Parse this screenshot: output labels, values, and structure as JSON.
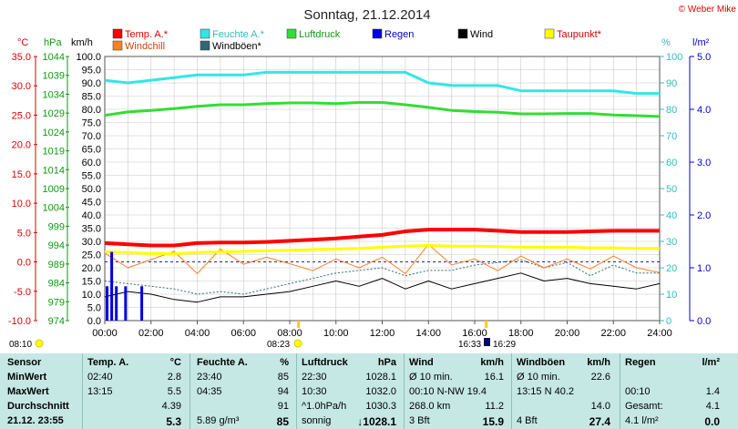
{
  "title": "Sonntag, 21.12.2014",
  "copyright": "© Weber Mike",
  "colors": {
    "temp": "#ff0000",
    "humidity": "#33e6e6",
    "pressure": "#33dd33",
    "rain": "#0000dd",
    "wind": "#000000",
    "dewpoint": "#ffff00",
    "windchill": "#ff8020",
    "gust": "#336677",
    "grid": "#c8c8c8"
  },
  "units": {
    "temp": "°C",
    "pressure": "hPa",
    "wind": "km/h",
    "humidity": "%",
    "rain": "l/m²"
  },
  "legend": {
    "row1": [
      "Temp. A.*",
      "Feuchte A.*",
      "Luftdruck",
      "Regen",
      "Wind",
      "Taupunkt*"
    ],
    "row2": [
      "Windchill",
      "Windböen*"
    ]
  },
  "axes": {
    "temp_ticks": [
      "35.0",
      "30.0",
      "25.0",
      "20.0",
      "15.0",
      "10.0",
      "5.0",
      "0.0",
      "-5.0",
      "-10.0"
    ],
    "pressure_ticks": [
      "1044",
      "1039",
      "1034",
      "1029",
      "1024",
      "1019",
      "1014",
      "1009",
      "1004",
      "999",
      "994",
      "989",
      "984",
      "979",
      "974"
    ],
    "wind_ticks": [
      "100.0",
      "95.0",
      "90.0",
      "85.0",
      "80.0",
      "75.0",
      "70.0",
      "65.0",
      "60.0",
      "55.0",
      "50.0",
      "45.0",
      "40.0",
      "35.0",
      "30.0",
      "25.0",
      "20.0",
      "15.0",
      "10.0",
      "5.0",
      "0.0"
    ],
    "humidity_ticks": [
      "100",
      "90",
      "80",
      "70",
      "60",
      "50",
      "40",
      "30",
      "20",
      "10",
      "0"
    ],
    "rain_ticks": [
      "5.0",
      "4.0",
      "3.0",
      "2.0",
      "1.0",
      "0.0"
    ],
    "x_ticks": [
      "00:00",
      "02:00",
      "04:00",
      "06:00",
      "08:00",
      "10:00",
      "12:00",
      "14:00",
      "16:00",
      "18:00",
      "20:00",
      "22:00",
      "24:00"
    ]
  },
  "sun": {
    "sunrise_left": "08:10",
    "sunrise": "08:23",
    "sunset_start": "16:33",
    "sunset": "16:29"
  },
  "chart_data": {
    "type": "line",
    "xlabel": "",
    "x": [
      "00:00",
      "01:00",
      "02:00",
      "03:00",
      "04:00",
      "05:00",
      "06:00",
      "07:00",
      "08:00",
      "09:00",
      "10:00",
      "11:00",
      "12:00",
      "13:00",
      "14:00",
      "15:00",
      "16:00",
      "17:00",
      "18:00",
      "19:00",
      "20:00",
      "21:00",
      "22:00",
      "23:00",
      "24:00"
    ],
    "xlim": [
      0,
      24
    ],
    "series": [
      {
        "name": "Temp. A.*",
        "axis": "temp",
        "values": [
          3.2,
          3.0,
          2.8,
          2.8,
          3.2,
          3.3,
          3.3,
          3.4,
          3.6,
          3.8,
          4.0,
          4.3,
          4.6,
          5.2,
          5.5,
          5.5,
          5.5,
          5.3,
          5.1,
          5.1,
          5.1,
          5.2,
          5.3,
          5.3,
          5.3
        ]
      },
      {
        "name": "Feuchte A.*",
        "axis": "humidity",
        "values": [
          91,
          90,
          91,
          92,
          93,
          93,
          93,
          94,
          94,
          94,
          94,
          94,
          94,
          94,
          90,
          89,
          89,
          89,
          87,
          87,
          87,
          87,
          87,
          86,
          86
        ]
      },
      {
        "name": "Luftdruck",
        "axis": "pressure",
        "values": [
          1028.4,
          1029.3,
          1029.7,
          1030.2,
          1030.8,
          1031.2,
          1031.2,
          1031.5,
          1031.7,
          1031.7,
          1031.5,
          1031.8,
          1031.8,
          1031.2,
          1030.5,
          1029.7,
          1029.4,
          1029.2,
          1028.8,
          1028.8,
          1028.9,
          1028.9,
          1028.5,
          1028.3,
          1028.1
        ]
      },
      {
        "name": "Taupunkt*",
        "axis": "temp",
        "values": [
          1.7,
          1.6,
          1.4,
          1.4,
          1.6,
          1.7,
          1.8,
          1.9,
          2.0,
          2.1,
          2.2,
          2.3,
          2.5,
          2.7,
          2.8,
          2.7,
          2.7,
          2.6,
          2.5,
          2.5,
          2.5,
          2.4,
          2.4,
          2.3,
          2.3
        ]
      },
      {
        "name": "Windchill",
        "axis": "temp",
        "values": [
          1.5,
          -1.0,
          0.4,
          1.8,
          -2.0,
          2.2,
          -0.4,
          0.8,
          -0.3,
          -1.5,
          0.5,
          -1.0,
          0.8,
          -2.0,
          3.0,
          -0.5,
          0.5,
          -1.5,
          1.0,
          -1.0,
          0.5,
          -1.2,
          1.0,
          -1.0,
          -1.8
        ]
      },
      {
        "name": "Wind",
        "axis": "wind",
        "values": [
          9,
          11,
          10,
          8,
          7,
          9,
          9,
          10,
          11,
          13,
          15,
          13,
          16,
          12,
          15,
          12,
          14,
          16,
          18,
          15,
          16,
          14,
          13,
          12,
          14
        ]
      },
      {
        "name": "Windböen*",
        "axis": "wind",
        "values": [
          15,
          14,
          13,
          12,
          10,
          11,
          10,
          12,
          14,
          16,
          18,
          19,
          20,
          17,
          19,
          19,
          21,
          22,
          23,
          20,
          22,
          17,
          21,
          18,
          18
        ]
      },
      {
        "name": "Regen",
        "axis": "rain",
        "type": "bar",
        "x": [
          0.1,
          0.3,
          0.5,
          0.9,
          1.6
        ],
        "values": [
          0.65,
          1.3,
          0.65,
          0.65,
          0.65
        ]
      }
    ],
    "axis_ranges": {
      "temp": [
        -10,
        35
      ],
      "pressure": [
        974,
        1044
      ],
      "wind": [
        0,
        100
      ],
      "humidity": [
        0,
        100
      ],
      "rain": [
        0,
        5
      ]
    },
    "grid": true,
    "legend_position": "top"
  },
  "table": {
    "rows": [
      [
        "Sensor",
        "Temp. A.",
        "°C",
        "Feuchte A.",
        "%",
        "Luftdruck",
        "hPa",
        "Wind",
        "km/h",
        "Windböen",
        "km/h",
        "Regen",
        "l/m²"
      ],
      [
        "MinWert",
        "02:40",
        "2.8",
        "23:40",
        "85",
        "22:30",
        "1028.1",
        "Ø 10 min.",
        "16.1",
        "Ø 10 min.",
        "22.6",
        "",
        ""
      ],
      [
        "MaxWert",
        "13:15",
        "5.5",
        "04:35",
        "94",
        "10:30",
        "1032.0",
        "00:10 N-NW 19.4",
        "",
        "13:15 N 40.2",
        "",
        "00:10",
        "1.4"
      ],
      [
        "Durchschnitt",
        "",
        "4.39",
        "",
        "91",
        "^1.0hPa/h",
        "1030.3",
        "268.0 km",
        "11.2",
        "",
        "14.0",
        "Gesamt:",
        "4.1"
      ],
      [
        "21.12. 23:55",
        "",
        "5.3",
        "5.89 g/m³",
        "85",
        "sonnig",
        "↓1028.1",
        "3 Bft",
        "15.9",
        "4 Bft",
        "27.4",
        "4.1 l/m²",
        "0.0"
      ]
    ]
  }
}
